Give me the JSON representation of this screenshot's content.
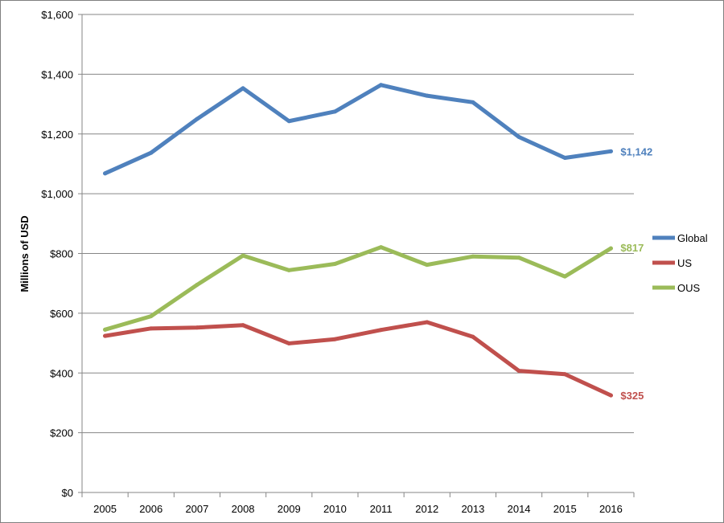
{
  "chart_data": {
    "type": "line",
    "title": "",
    "xlabel": "",
    "ylabel": "Millions of USD",
    "categories": [
      "2005",
      "2006",
      "2007",
      "2008",
      "2009",
      "2010",
      "2011",
      "2012",
      "2013",
      "2014",
      "2015",
      "2016"
    ],
    "ylim": [
      0,
      1600
    ],
    "ytick_step": 200,
    "ytick_labels": [
      "$0",
      "$200",
      "$400",
      "$600",
      "$800",
      "$1,000",
      "$1,200",
      "$1,400",
      "$1,600"
    ],
    "grid": true,
    "legend_position": "right",
    "series": [
      {
        "name": "Global",
        "color": "#4F81BD",
        "values": [
          1068,
          1137,
          1250,
          1353,
          1243,
          1275,
          1364,
          1328,
          1306,
          1190,
          1120,
          1142
        ],
        "end_label": "$1,142"
      },
      {
        "name": "US",
        "color": "#C0504D",
        "values": [
          524,
          549,
          552,
          560,
          499,
          513,
          544,
          570,
          521,
          407,
          396,
          325
        ],
        "end_label": "$325"
      },
      {
        "name": "OUS",
        "color": "#9BBB59",
        "values": [
          545,
          590,
          695,
          793,
          744,
          765,
          821,
          762,
          790,
          786,
          723,
          817
        ],
        "end_label": "$817"
      }
    ]
  }
}
